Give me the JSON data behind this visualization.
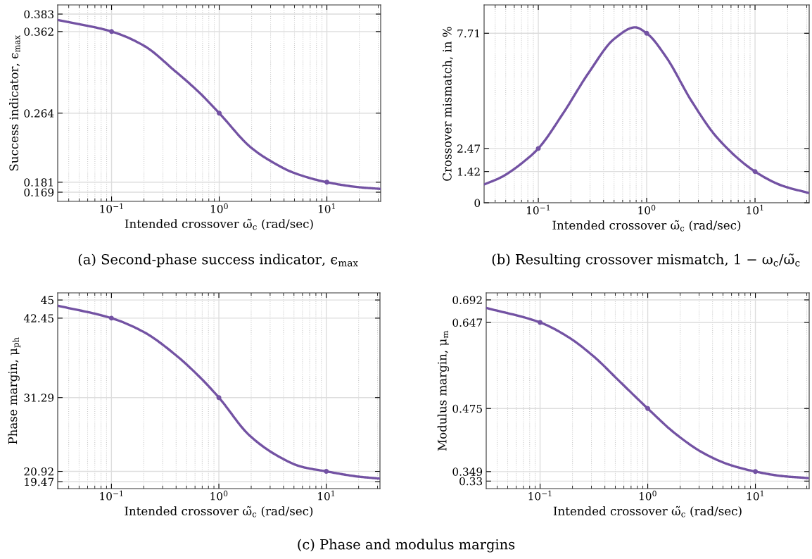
{
  "chart_data": [
    {
      "type": "line",
      "title": "(a) Second-phase success indicator, ϵ$_{max}$",
      "xlabel": "Intended crossover ω̃$_{c}$ (rad/sec)",
      "ylabel": "Success indicator, ϵ$_{max}$",
      "log": "x",
      "grid": true,
      "xlim": [
        0.0316,
        31.6
      ],
      "xticks": [
        {
          "value": 0.1,
          "label": "10$^{−1}$"
        },
        {
          "value": 1,
          "label": "10$^{0}$"
        },
        {
          "value": 10,
          "label": "10$^{1}$"
        }
      ],
      "ylim": [
        0.158,
        0.394
      ],
      "yticks": [
        0.169,
        0.181,
        0.264,
        0.362,
        0.383
      ],
      "series": [
        {
          "color": "#7352a3",
          "marker": "none",
          "x": [
            0.0316,
            0.1,
            0.2,
            0.385,
            0.65,
            1,
            1.96,
            3.04,
            5.0,
            10,
            19.8,
            31.1
          ],
          "values": [
            0.376,
            0.362,
            0.345,
            0.315,
            0.289,
            0.264,
            0.223,
            0.206,
            0.192,
            0.181,
            0.175,
            0.173
          ]
        },
        {
          "type": "scatter",
          "color": "#7352a3",
          "marker": "circle",
          "x": [
            0.1,
            1,
            10
          ],
          "values": [
            0.362,
            0.264,
            0.181
          ]
        }
      ]
    },
    {
      "type": "line",
      "title": "(b) Resulting crossover mismatch, 1 − ω$_{c}$/ω̃$_{c}$",
      "xlabel": "Intended crossover ω̃$_{c}$ (rad/sec)",
      "ylabel": "Crossover mismatch, in %",
      "log": "x",
      "grid": true,
      "xlim": [
        0.0316,
        31.6
      ],
      "xticks": [
        {
          "value": 0.1,
          "label": "10$^{−1}$"
        },
        {
          "value": 1,
          "label": "10$^{0}$"
        },
        {
          "value": 10,
          "label": "10$^{1}$"
        }
      ],
      "ylim": [
        0,
        9
      ],
      "yticks": [
        0,
        1.42,
        2.47,
        7.71
      ],
      "series": [
        {
          "color": "#7352a3",
          "marker": "none",
          "x": [
            0.0316,
            0.0458,
            0.0791,
            0.1,
            0.17,
            0.293,
            0.506,
            0.782,
            1,
            1.507,
            2.6,
            4.49,
            10,
            17.5,
            30.9
          ],
          "values": [
            0.83,
            1.17,
            2.0,
            2.47,
            4.08,
            5.93,
            7.47,
            7.98,
            7.71,
            6.64,
            4.62,
            2.95,
            1.42,
            0.79,
            0.45
          ]
        },
        {
          "type": "scatter",
          "color": "#7352a3",
          "marker": "circle",
          "x": [
            0.1,
            1,
            10
          ],
          "values": [
            2.47,
            7.71,
            1.42
          ]
        }
      ]
    },
    {
      "type": "line",
      "xlabel": "Intended crossover ω̃$_{c}$ (rad/sec)",
      "ylabel": "Phase margin, μ$_{ph}$",
      "log": "x",
      "grid": true,
      "annotations": [
        "(c) Phase and modulus margins"
      ],
      "xlim": [
        0.0316,
        31.6
      ],
      "xticks": [
        {
          "value": 0.1,
          "label": "10$^{−1}$"
        },
        {
          "value": 1,
          "label": "10$^{0}$"
        },
        {
          "value": 10,
          "label": "10$^{1}$"
        }
      ],
      "ylim": [
        18.5,
        46
      ],
      "yticks": [
        19.47,
        20.92,
        31.29,
        42.45,
        45
      ],
      "series": [
        {
          "color": "#7352a3",
          "marker": "none",
          "x": [
            0.0316,
            0.1,
            0.2,
            0.387,
            0.671,
            1,
            1.92,
            3.52,
            5.79,
            10,
            19.5,
            31.5
          ],
          "values": [
            44.2,
            42.45,
            40.5,
            37.4,
            34.1,
            31.29,
            26.0,
            23.1,
            21.6,
            20.92,
            20.2,
            19.9
          ]
        },
        {
          "type": "scatter",
          "color": "#7352a3",
          "marker": "circle",
          "x": [
            0.1,
            1,
            10
          ],
          "values": [
            42.45,
            31.29,
            20.92
          ]
        }
      ]
    },
    {
      "type": "line",
      "xlabel": "Intended crossover ω̃$_{c}$ (rad/sec)",
      "ylabel": "Modulus margin, μ$_{m}$",
      "log": "x",
      "grid": true,
      "xlim": [
        0.0316,
        31.6
      ],
      "xticks": [
        {
          "value": 0.1,
          "label": "10$^{−1}$"
        },
        {
          "value": 1,
          "label": "10$^{0}$"
        },
        {
          "value": 10,
          "label": "10$^{1}$"
        }
      ],
      "ylim": [
        0.315,
        0.706
      ],
      "yticks": [
        0.33,
        0.349,
        0.475,
        0.647,
        0.692
      ],
      "series": [
        {
          "color": "#7352a3",
          "marker": "none",
          "x": [
            0.0316,
            0.1,
            0.182,
            0.315,
            0.543,
            1,
            1.8,
            3.29,
            5.68,
            10,
            17.8,
            30.8
          ],
          "values": [
            0.676,
            0.647,
            0.618,
            0.579,
            0.53,
            0.475,
            0.425,
            0.386,
            0.363,
            0.349,
            0.34,
            0.336
          ]
        },
        {
          "type": "scatter",
          "color": "#7352a3",
          "marker": "circle",
          "x": [
            0.1,
            1,
            10
          ],
          "values": [
            0.647,
            0.475,
            0.349
          ]
        }
      ]
    }
  ]
}
